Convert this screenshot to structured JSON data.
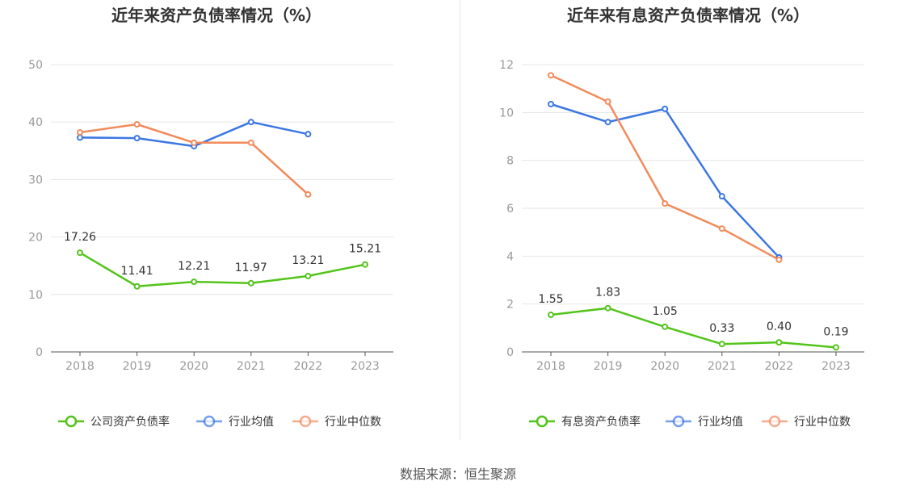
{
  "source": "数据来源：恒生聚源",
  "chart_data": [
    {
      "type": "line",
      "title": "近年来资产负债率情况（%）",
      "categories": [
        "2018",
        "2019",
        "2020",
        "2021",
        "2022",
        "2023"
      ],
      "ylim": [
        0,
        50
      ],
      "yticks": [
        0,
        10,
        20,
        30,
        40,
        50
      ],
      "grid": true,
      "legend": "bottom",
      "series": [
        {
          "name": "公司资产负债率",
          "color": "#52c41a",
          "values": [
            17.26,
            11.41,
            12.21,
            11.97,
            13.21,
            15.21
          ],
          "labels": [
            "17.26",
            "11.41",
            "12.21",
            "11.97",
            "13.21",
            "15.21"
          ]
        },
        {
          "name": "行业均值",
          "color": "#3b77e3",
          "values": [
            37.3,
            37.2,
            35.8,
            40.0,
            37.9,
            null
          ]
        },
        {
          "name": "行业中位数",
          "color": "#f28a5b",
          "values": [
            38.2,
            39.6,
            36.4,
            36.4,
            27.4,
            null
          ]
        }
      ]
    },
    {
      "type": "line",
      "title": "近年来有息资产负债率情况（%）",
      "categories": [
        "2018",
        "2019",
        "2020",
        "2021",
        "2022",
        "2023"
      ],
      "ylim": [
        0,
        12
      ],
      "yticks": [
        0,
        2,
        4,
        6,
        8,
        10,
        12
      ],
      "grid": true,
      "legend": "bottom",
      "series": [
        {
          "name": "有息资产负债率",
          "color": "#52c41a",
          "values": [
            1.55,
            1.83,
            1.05,
            0.33,
            0.4,
            0.19
          ],
          "labels": [
            "1.55",
            "1.83",
            "1.05",
            "0.33",
            "0.40",
            "0.19"
          ]
        },
        {
          "name": "行业均值",
          "color": "#3b77e3",
          "values": [
            10.35,
            9.6,
            10.15,
            6.5,
            3.95,
            null
          ]
        },
        {
          "name": "行业中位数",
          "color": "#f28a5b",
          "values": [
            11.55,
            10.45,
            6.2,
            5.15,
            3.85,
            null
          ]
        }
      ]
    }
  ]
}
